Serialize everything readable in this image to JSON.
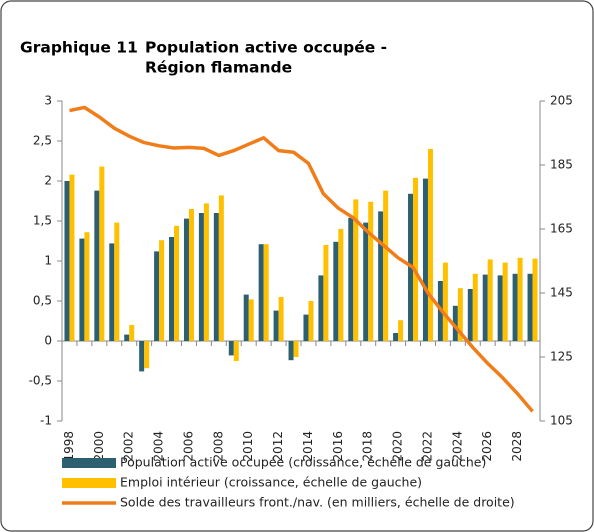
{
  "chart_data": {
    "type": "bar",
    "label": "Graphique 11",
    "title_lines": [
      "Population active occupée -",
      "Région flamande"
    ],
    "categories": [
      "1998",
      null,
      "2000",
      null,
      "2002",
      null,
      "2004",
      null,
      "2006",
      null,
      "2008",
      null,
      "2010",
      null,
      "2012",
      null,
      "2014",
      null,
      "2016",
      null,
      "2018",
      null,
      "2020",
      null,
      "2022",
      null,
      "2024",
      null,
      "2026",
      null,
      "2028",
      null
    ],
    "series": [
      {
        "name": "Population active occupée (croissance, échelle de gauche)",
        "type": "bar",
        "color": "#2c5f6f",
        "values": [
          2.0,
          1.28,
          1.88,
          1.22,
          0.08,
          -0.38,
          1.12,
          1.3,
          1.53,
          1.6,
          1.6,
          -0.18,
          0.58,
          1.21,
          0.38,
          -0.24,
          0.33,
          0.82,
          1.24,
          1.54,
          1.48,
          1.62,
          0.1,
          1.84,
          2.03,
          0.75,
          0.44,
          0.65,
          0.83,
          0.82,
          0.84,
          0.84
        ]
      },
      {
        "name": "Emploi intérieur (croissance, échelle de gauche)",
        "type": "bar",
        "color": "#ffc000",
        "values": [
          2.08,
          1.36,
          2.18,
          1.48,
          0.2,
          -0.34,
          1.26,
          1.44,
          1.65,
          1.72,
          1.82,
          -0.25,
          0.52,
          1.21,
          0.55,
          -0.2,
          0.5,
          1.2,
          1.4,
          1.77,
          1.74,
          1.88,
          0.26,
          2.04,
          2.4,
          0.98,
          0.66,
          0.84,
          1.02,
          0.98,
          1.04,
          1.03
        ]
      },
      {
        "name": "Solde des travailleurs front./nav. (en milliers, échelle de droite)",
        "type": "line",
        "axis": "y2",
        "color": "#f07d1a",
        "values": [
          202,
          203,
          200,
          196.5,
          194,
          192,
          191,
          190.3,
          190.5,
          190.2,
          188,
          189.5,
          191.5,
          193.5,
          189.5,
          189,
          185.5,
          176,
          171.5,
          168.5,
          164,
          160,
          156,
          153,
          145,
          139,
          133.5,
          128,
          123,
          118.5,
          113.5,
          108
        ]
      }
    ],
    "ylim": [
      -1,
      3
    ],
    "yticks": [
      -1,
      {
        "value": -0.5,
        "label": "-0,5"
      },
      0,
      {
        "value": 0.5,
        "label": "0,5"
      },
      1,
      {
        "value": 1.5,
        "label": "1,5"
      },
      2,
      {
        "value": 2.5,
        "label": "2,5"
      },
      3
    ],
    "y2lim": [
      105,
      205
    ],
    "y2ticks": [
      105,
      125,
      145,
      165,
      185,
      205
    ]
  }
}
